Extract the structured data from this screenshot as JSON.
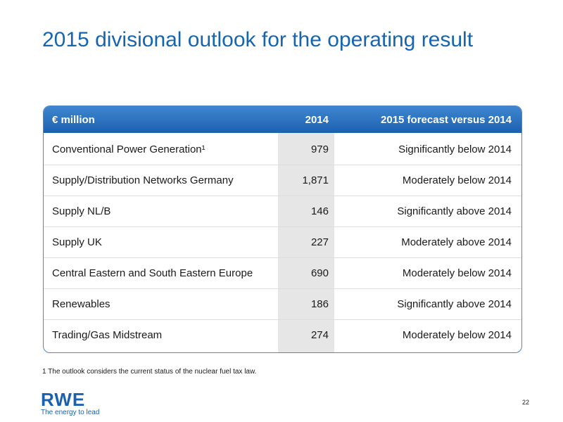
{
  "slide": {
    "title": "2015 divisional outlook for the operating result",
    "page_number": "22"
  },
  "table": {
    "header": {
      "col1": "€ million",
      "col2": "2014",
      "col3": "2015 forecast versus 2014"
    },
    "rows": [
      {
        "division": "Conventional Power Generation¹",
        "value_2014": "979",
        "forecast": "Significantly below 2014"
      },
      {
        "division": "Supply/Distribution Networks Germany",
        "value_2014": "1,871",
        "forecast": "Moderately below 2014"
      },
      {
        "division": "Supply NL/B",
        "value_2014": "146",
        "forecast": "Significantly above 2014"
      },
      {
        "division": "Supply UK",
        "value_2014": "227",
        "forecast": "Moderately above 2014"
      },
      {
        "division": "Central Eastern and South Eastern Europe",
        "value_2014": "690",
        "forecast": "Moderately below 2014"
      },
      {
        "division": "Renewables",
        "value_2014": "186",
        "forecast": "Significantly above 2014"
      },
      {
        "division": "Trading/Gas Midstream",
        "value_2014": "274",
        "forecast": "Moderately below 2014"
      }
    ]
  },
  "footnote": {
    "marker": "1",
    "text": "The outlook considers the current status of the nuclear fuel tax law."
  },
  "logo": {
    "mark": "RWE",
    "tagline": "The energy to lead"
  },
  "colors": {
    "title": "#1565b0",
    "header_background": "#1c61b0",
    "header_text": "#ffffff",
    "year_column_background": "#e6e6e6",
    "frame_border": "#4f86c6"
  }
}
